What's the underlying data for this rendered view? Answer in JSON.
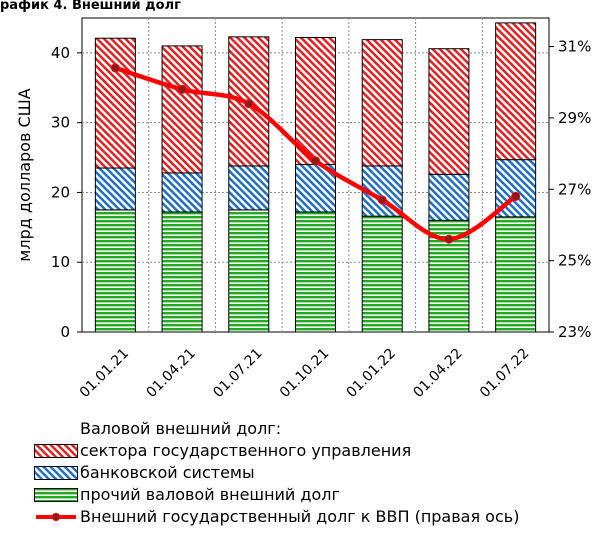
{
  "header_text": "рафик 4. Внешний долг",
  "chart_data": {
    "type": "bar",
    "stacked": true,
    "categories": [
      "01.01.21",
      "01.04.21",
      "01.07.21",
      "01.10.21",
      "01.01.22",
      "01.04.22",
      "01.07.22"
    ],
    "ylabel": "млрд долларов США",
    "ylim": [
      0,
      45
    ],
    "yticks": [
      0,
      10,
      20,
      30,
      40
    ],
    "y2lim": [
      23,
      31.8
    ],
    "y2ticks": [
      "23%",
      "25%",
      "27%",
      "29%",
      "31%"
    ],
    "y2tick_values": [
      23,
      25,
      27,
      29,
      31
    ],
    "grid": true,
    "legend_position": "bottom",
    "legend_title": "Валовой внешний долг:",
    "series": [
      {
        "name": "прочий валовой внешний долг",
        "color": "#22aa22",
        "pattern": "horizontal-lines",
        "values": [
          17.5,
          17.2,
          17.5,
          17.2,
          16.6,
          16.0,
          16.5
        ]
      },
      {
        "name": "банковской системы",
        "color": "#1f6fc4",
        "pattern": "diagonal-hatch",
        "values": [
          6.0,
          5.6,
          6.3,
          6.8,
          7.2,
          6.6,
          8.2
        ]
      },
      {
        "name": "сектора государственного управления",
        "color": "#e62020",
        "pattern": "diagonal-hatch",
        "values": [
          18.6,
          18.2,
          18.5,
          18.2,
          18.1,
          18.0,
          19.6
        ]
      }
    ],
    "line_series": {
      "name": "Внешний государственный долг к ВВП (правая ось)",
      "axis": "right",
      "color": "#ff0000",
      "values": [
        30.4,
        29.8,
        29.4,
        27.8,
        26.7,
        25.6,
        26.8
      ]
    }
  }
}
